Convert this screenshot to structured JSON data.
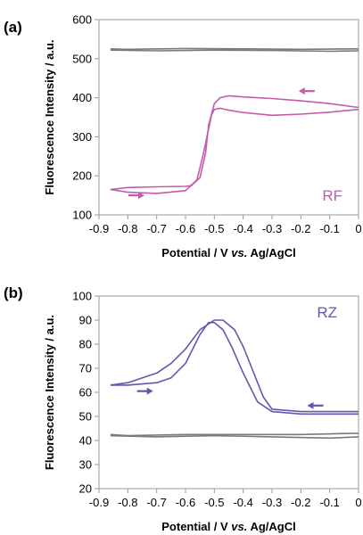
{
  "chart_data": [
    {
      "type": "line",
      "panel_label": "(a)",
      "xlabel_parts": [
        "Potential / V ",
        "vs.",
        " Ag/AgCl"
      ],
      "ylabel": "Fluorescence Intensity / a.u.",
      "xlim": [
        -0.9,
        0
      ],
      "ylim": [
        100,
        600
      ],
      "xticks": [
        "-0.9",
        "-0.8",
        "-0.7",
        "-0.6",
        "-0.5",
        "-0.4",
        "-0.3",
        "-0.2",
        "-0.1",
        "0"
      ],
      "yticks": [
        "100",
        "200",
        "300",
        "400",
        "500",
        "600"
      ],
      "series_label": "RF",
      "series_color": "#c45aac",
      "control_color": "#7a7a7a",
      "arrows": [
        {
          "x": -0.18,
          "y": 417,
          "direction": "left"
        },
        {
          "x": -0.77,
          "y": 150,
          "direction": "right"
        }
      ],
      "series": [
        {
          "color": "#c45aac",
          "x": [
            -0.86,
            -0.8,
            -0.7,
            -0.6,
            -0.56,
            -0.54,
            -0.52,
            -0.51,
            -0.5,
            -0.48,
            -0.45,
            -0.4,
            -0.3,
            -0.2,
            -0.1,
            0
          ],
          "y": [
            165,
            158,
            155,
            162,
            190,
            250,
            320,
            355,
            370,
            373,
            368,
            362,
            355,
            358,
            363,
            370
          ]
        },
        {
          "color": "#c45aac",
          "x": [
            0,
            -0.1,
            -0.2,
            -0.3,
            -0.4,
            -0.45,
            -0.48,
            -0.5,
            -0.52,
            -0.53,
            -0.55,
            -0.58,
            -0.6,
            -0.7,
            -0.8,
            -0.86
          ],
          "y": [
            375,
            385,
            392,
            398,
            402,
            405,
            400,
            385,
            330,
            260,
            195,
            175,
            173,
            172,
            170,
            165
          ]
        },
        {
          "color": "#7a7a7a",
          "x": [
            -0.86,
            -0.7,
            -0.5,
            -0.3,
            -0.1,
            0
          ],
          "y": [
            522,
            520,
            522,
            521,
            519,
            520
          ]
        },
        {
          "color": "#7a7a7a",
          "x": [
            0,
            -0.2,
            -0.4,
            -0.6,
            -0.8,
            -0.86
          ],
          "y": [
            525,
            524,
            525,
            526,
            524,
            525
          ]
        }
      ]
    },
    {
      "type": "line",
      "panel_label": "(b)",
      "xlabel_parts": [
        "Potential / V ",
        "vs.",
        " Ag/AgCl"
      ],
      "ylabel": "Fluorescence Intensity / a.u.",
      "xlim": [
        -0.9,
        0
      ],
      "ylim": [
        20,
        100
      ],
      "xticks": [
        "-0.9",
        "-0.8",
        "-0.7",
        "-0.6",
        "-0.5",
        "-0.4",
        "-0.3",
        "-0.2",
        "-0.1",
        "0"
      ],
      "yticks": [
        "20",
        "30",
        "40",
        "50",
        "60",
        "70",
        "80",
        "90",
        "100"
      ],
      "series_label": "RZ",
      "series_color": "#6655b0",
      "control_color": "#7a7a7a",
      "arrows": [
        {
          "x": -0.15,
          "y": 54.5,
          "direction": "left"
        },
        {
          "x": -0.74,
          "y": 60.5,
          "direction": "right"
        }
      ],
      "series": [
        {
          "color": "#6655b0",
          "x": [
            -0.86,
            -0.8,
            -0.7,
            -0.65,
            -0.6,
            -0.55,
            -0.52,
            -0.5,
            -0.47,
            -0.44,
            -0.4,
            -0.35,
            -0.3,
            -0.2,
            -0.1,
            0
          ],
          "y": [
            63,
            63,
            64,
            66,
            72,
            84,
            89,
            89,
            86,
            79,
            68,
            56,
            52,
            51,
            51,
            51
          ]
        },
        {
          "color": "#6655b0",
          "x": [
            0,
            -0.1,
            -0.2,
            -0.3,
            -0.33,
            -0.37,
            -0.4,
            -0.43,
            -0.47,
            -0.5,
            -0.55,
            -0.6,
            -0.65,
            -0.7,
            -0.8,
            -0.86
          ],
          "y": [
            52,
            52,
            52,
            53,
            58,
            70,
            79,
            86,
            90,
            90,
            86,
            78,
            72,
            68,
            64,
            63
          ]
        },
        {
          "color": "#7a7a7a",
          "x": [
            -0.86,
            -0.7,
            -0.5,
            -0.3,
            -0.1,
            0
          ],
          "y": [
            42,
            41.5,
            42,
            41.5,
            41,
            41.5
          ]
        },
        {
          "color": "#7a7a7a",
          "x": [
            0,
            -0.2,
            -0.4,
            -0.6,
            -0.8,
            -0.86
          ],
          "y": [
            43,
            42.5,
            42.5,
            42.5,
            42,
            42.5
          ]
        }
      ]
    }
  ]
}
